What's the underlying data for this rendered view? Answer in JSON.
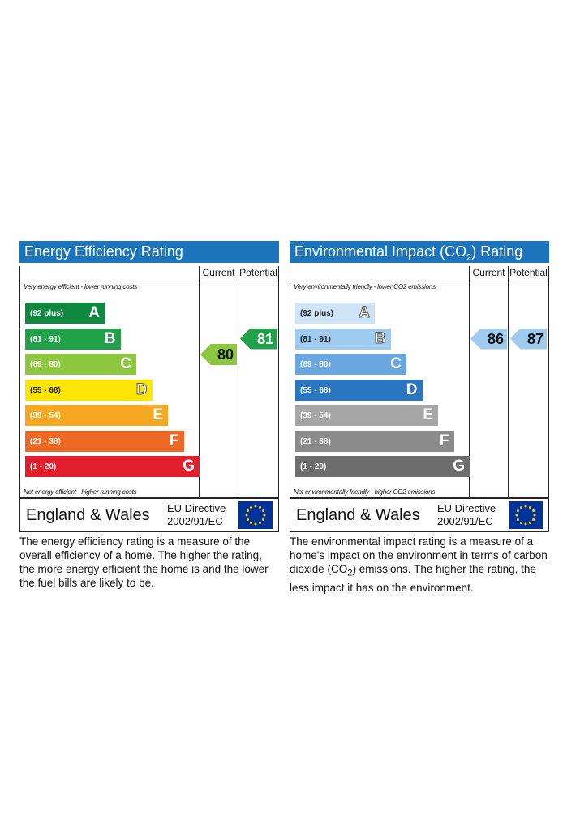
{
  "energy": {
    "title": "Energy Efficiency Rating",
    "col_current": "Current",
    "col_potential": "Potential",
    "top_note": "Very energy efficient - lower running costs",
    "bottom_note": "Not energy efficient - higher running costs",
    "bands": [
      {
        "range": "(92 plus)",
        "letter": "A",
        "color": "#0e8a3e"
      },
      {
        "range": "(81 - 91)",
        "letter": "B",
        "color": "#21a24a"
      },
      {
        "range": "(69 - 80)",
        "letter": "C",
        "color": "#8dc63f"
      },
      {
        "range": "(55 - 68)",
        "letter": "D",
        "color": "#ffe600"
      },
      {
        "range": "(39 - 54)",
        "letter": "E",
        "color": "#f7a823"
      },
      {
        "range": "(21 - 38)",
        "letter": "F",
        "color": "#ee6a24"
      },
      {
        "range": "(1 - 20)",
        "letter": "G",
        "color": "#e31d2b"
      }
    ],
    "current": {
      "value": "80",
      "band": "C",
      "color": "#8dc63f"
    },
    "potential": {
      "value": "81",
      "band": "B",
      "color": "#21a24a"
    },
    "footer_region": "England & Wales",
    "footer_directive_1": "EU Directive",
    "footer_directive_2": "2002/91/EC",
    "description": "The energy efficiency rating is a measure of the overall efficiency of a home. The higher the rating, the more energy efficient the home is and the lower the fuel bills are likely to be."
  },
  "environment": {
    "title_pre": "Environmental Impact (CO",
    "title_sub": "2",
    "title_post": ") Rating",
    "col_current": "Current",
    "col_potential": "Potential",
    "top_note": "Very environmentally friendly - lower CO2 emissions",
    "bottom_note": "Not environmentally friendly - higher CO2 emissions",
    "bands": [
      {
        "range": "(92 plus)",
        "letter": "A",
        "color": "#cfe5f7"
      },
      {
        "range": "(81 - 91)",
        "letter": "B",
        "color": "#9fcbee"
      },
      {
        "range": "(69 - 80)",
        "letter": "C",
        "color": "#6aa6df"
      },
      {
        "range": "(55 - 68)",
        "letter": "D",
        "color": "#2b76c2"
      },
      {
        "range": "(39 - 54)",
        "letter": "E",
        "color": "#a6a6a6"
      },
      {
        "range": "(21 - 38)",
        "letter": "F",
        "color": "#8b8b8b"
      },
      {
        "range": "(1 - 20)",
        "letter": "G",
        "color": "#6d6d6d"
      }
    ],
    "current": {
      "value": "86",
      "band": "B",
      "color": "#9fcbee"
    },
    "potential": {
      "value": "87",
      "band": "B",
      "color": "#9fcbee"
    },
    "footer_region": "England & Wales",
    "footer_directive_1": "EU Directive",
    "footer_directive_2": "2002/91/EC",
    "description_1": "The environmental impact rating is a measure of a home's impact on the environment in terms of carbon dioxide (CO",
    "description_sub": "2",
    "description_2": ") emissions. The higher the rating, the less impact it has on the environment."
  }
}
